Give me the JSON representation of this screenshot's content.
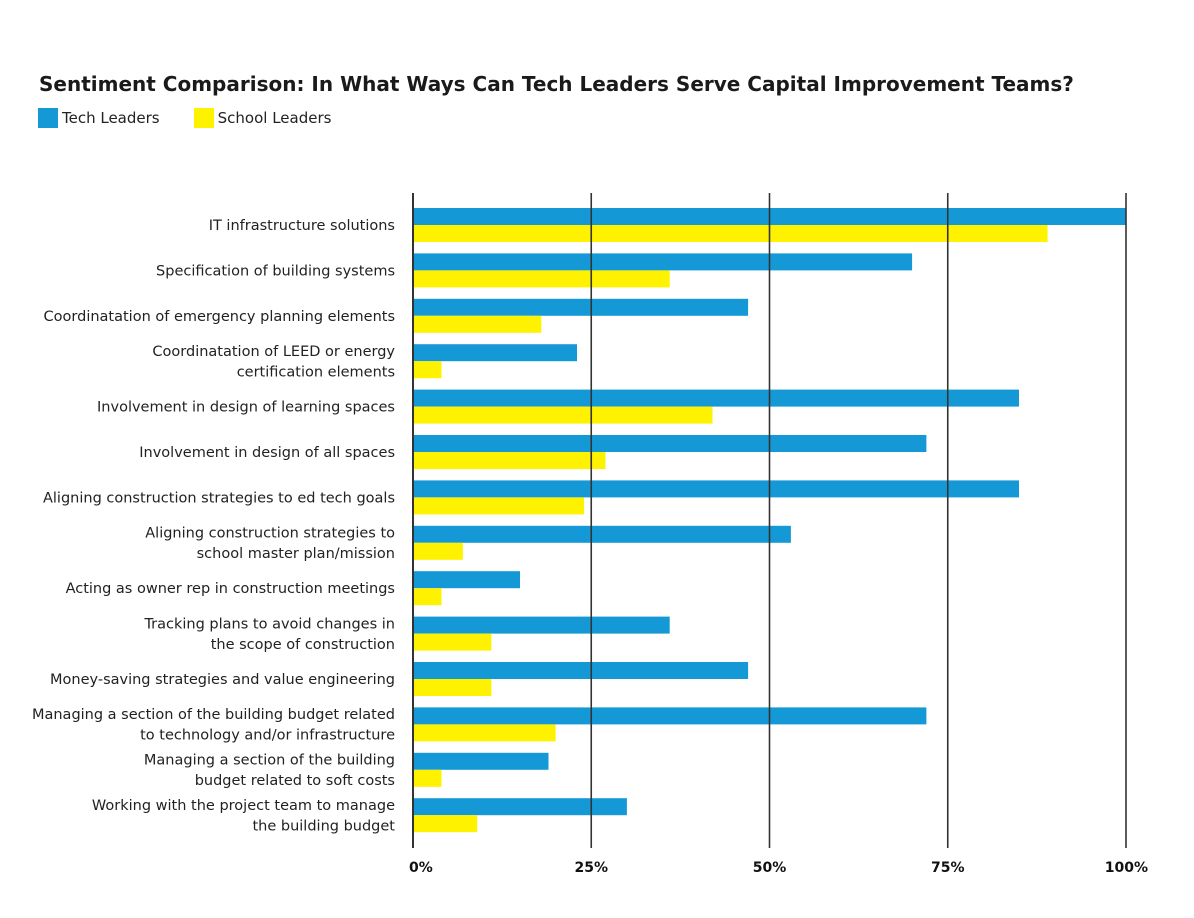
{
  "chart_data": {
    "type": "bar",
    "orientation": "horizontal",
    "title": "Sentiment Comparison: In What Ways Can Tech Leaders Serve Capital Improvement Teams?",
    "xlabel": "",
    "ylabel": "",
    "xlim": [
      0,
      100
    ],
    "ticks": [
      {
        "value": 0,
        "label": "0%"
      },
      {
        "value": 25,
        "label": "25%"
      },
      {
        "value": 50,
        "label": "50%"
      },
      {
        "value": 75,
        "label": "75%"
      },
      {
        "value": 100,
        "label": "100%"
      }
    ],
    "grid": true,
    "legend_position": "top-left",
    "categories": [
      [
        "IT infrastructure solutions"
      ],
      [
        "Specification of building systems"
      ],
      [
        "Coordinatation of emergency planning elements"
      ],
      [
        "Coordinatation of LEED or energy",
        "certification elements"
      ],
      [
        "Involvement in design of learning spaces"
      ],
      [
        "Involvement in design of all spaces"
      ],
      [
        "Aligning construction strategies to ed tech goals"
      ],
      [
        "Aligning construction strategies to",
        "school master plan/mission"
      ],
      [
        "Acting as owner rep in construction meetings"
      ],
      [
        "Tracking plans to avoid changes in",
        "the scope of construction"
      ],
      [
        "Money-saving strategies and value engineering"
      ],
      [
        "Managing a section of the building budget related",
        "to technology and/or infrastructure"
      ],
      [
        "Managing a section of the building",
        "budget related to soft costs"
      ],
      [
        "Working with the project team to manage",
        "the building budget"
      ]
    ],
    "series": [
      {
        "name": "Tech Leaders",
        "color": "#1599d6",
        "values": [
          100,
          70,
          47,
          23,
          85,
          72,
          85,
          53,
          15,
          36,
          47,
          72,
          19,
          30
        ]
      },
      {
        "name": "School Leaders",
        "color": "#fff200",
        "values": [
          89,
          36,
          18,
          4,
          42,
          27,
          24,
          7,
          4,
          11,
          11,
          20,
          4,
          9
        ]
      }
    ]
  }
}
